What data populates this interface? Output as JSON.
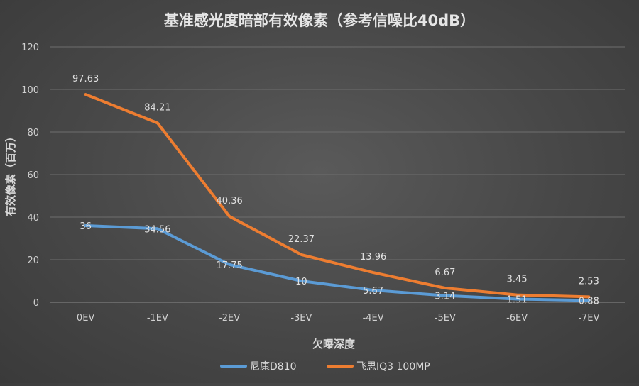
{
  "chart_data": {
    "type": "line",
    "title": "基准感光度暗部有效像素（参考信噪比40dB）",
    "xlabel": "欠曝深度",
    "ylabel": "有效像素（百万）",
    "categories": [
      "0EV",
      "-1EV",
      "-2EV",
      "-3EV",
      "-4EV",
      "-5EV",
      "-6EV",
      "-7EV"
    ],
    "ylim": [
      0,
      120
    ],
    "yticks": [
      0,
      20,
      40,
      60,
      80,
      100,
      120
    ],
    "grid": true,
    "legend_position": "bottom",
    "series": [
      {
        "name": "尼康D810",
        "color": "#5b9bd5",
        "values": [
          36,
          34.56,
          17.75,
          10,
          5.67,
          3.14,
          1.51,
          0.88
        ],
        "labels": [
          "36",
          "34.56",
          "17.75",
          "10",
          "5.67",
          "3.14",
          "1.51",
          "0.88"
        ]
      },
      {
        "name": "飞思IQ3 100MP",
        "color": "#ed7d31",
        "values": [
          97.63,
          84.21,
          40.36,
          22.37,
          13.96,
          6.67,
          3.45,
          2.53
        ],
        "labels": [
          "97.63",
          "84.21",
          "40.36",
          "22.37",
          "13.96",
          "6.67",
          "3.45",
          "2.53"
        ]
      }
    ]
  }
}
